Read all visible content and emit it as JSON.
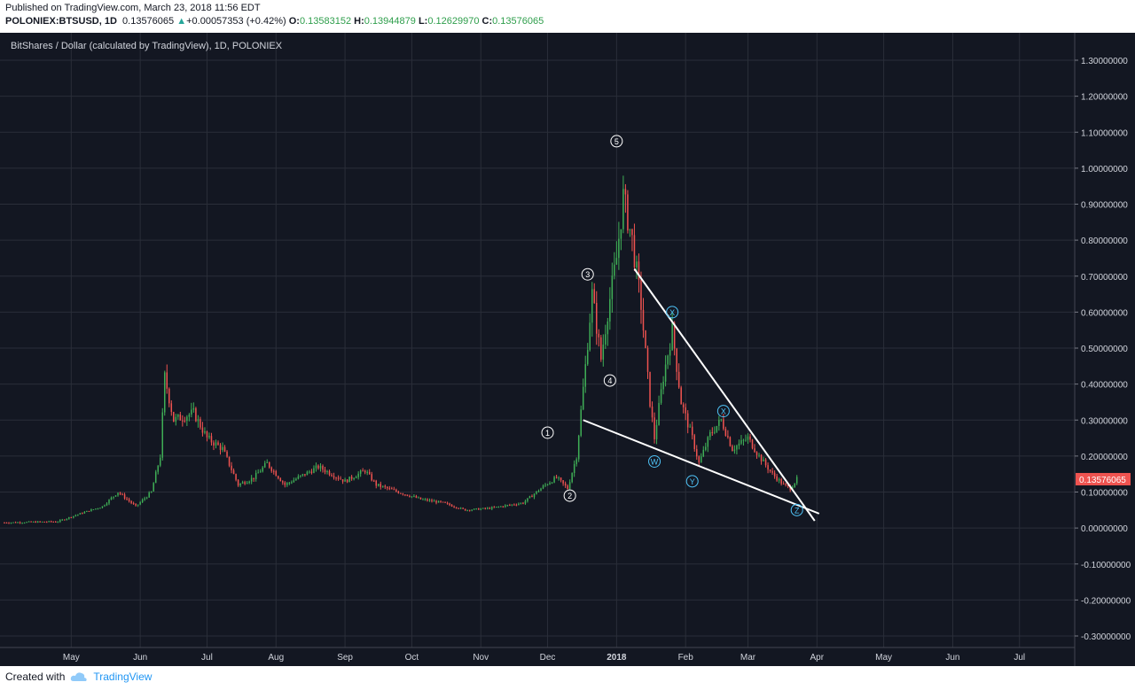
{
  "header": {
    "published": "Published on TradingView.com, March 23, 2018 11:56 EDT",
    "symbol": "POLONIEX:BTSUSD, 1D",
    "last": "0.13576065",
    "change": "+0.00057353 (+0.42%)",
    "open_label": "O:",
    "open": "0.13583152",
    "high_label": "H:",
    "high": "0.13944879",
    "low_label": "L:",
    "low": "0.12629970",
    "close_label": "C:",
    "close": "0.13576065"
  },
  "footer": {
    "created_with": "Created with",
    "brand": "TradingView"
  },
  "colors": {
    "background": "#131722",
    "grid": "#2a2e39",
    "up": "#26a69a",
    "up_fill": "#3fae56",
    "down": "#ef5350",
    "trendline": "#ffffff",
    "wave_white": "#ffffff",
    "wave_cyan": "#4fc3f7",
    "price_tag": "#ef5350"
  },
  "chart_data": {
    "type": "candlestick",
    "title": "BitShares / Dollar (calculated by TradingView), 1D, POLONIEX",
    "price_axis": {
      "min": -0.3,
      "max": 1.3,
      "ticks": [
        1.3,
        1.2,
        1.1,
        1.0,
        0.9,
        0.8,
        0.7,
        0.6,
        0.5,
        0.4,
        0.3,
        0.2,
        0.1,
        0.0,
        -0.1,
        -0.2,
        -0.3
      ],
      "tick_labels": [
        "1.30000000",
        "1.20000000",
        "1.10000000",
        "1.00000000",
        "0.90000000",
        "0.80000000",
        "0.70000000",
        "0.60000000",
        "0.50000000",
        "0.40000000",
        "0.30000000",
        "0.20000000",
        "0.10000000",
        "0.00000000",
        "-0.10000000",
        "-0.20000000",
        "-0.30000000"
      ]
    },
    "time_axis": {
      "start": "2017-04-01",
      "end": "2018-07-25",
      "ticks": [
        {
          "date": "2017-05-01",
          "label": "May"
        },
        {
          "date": "2017-06-01",
          "label": "Jun"
        },
        {
          "date": "2017-07-01",
          "label": "Jul"
        },
        {
          "date": "2017-08-01",
          "label": "Aug"
        },
        {
          "date": "2017-09-01",
          "label": "Sep"
        },
        {
          "date": "2017-10-01",
          "label": "Oct"
        },
        {
          "date": "2017-11-01",
          "label": "Nov"
        },
        {
          "date": "2017-12-01",
          "label": "Dec"
        },
        {
          "date": "2018-01-01",
          "label": "2018"
        },
        {
          "date": "2018-02-01",
          "label": "Feb"
        },
        {
          "date": "2018-03-01",
          "label": "Mar"
        },
        {
          "date": "2018-04-01",
          "label": "Apr"
        },
        {
          "date": "2018-05-01",
          "label": "May"
        },
        {
          "date": "2018-06-01",
          "label": "Jun"
        },
        {
          "date": "2018-07-01",
          "label": "Jul"
        }
      ]
    },
    "current_price": {
      "value": 0.13576065,
      "label": "0.13576065"
    },
    "price_path": [
      {
        "date": "2017-04-01",
        "close": 0.015
      },
      {
        "date": "2017-04-25",
        "close": 0.018
      },
      {
        "date": "2017-05-05",
        "close": 0.04
      },
      {
        "date": "2017-05-15",
        "close": 0.06
      },
      {
        "date": "2017-05-22",
        "close": 0.1
      },
      {
        "date": "2017-05-30",
        "close": 0.06
      },
      {
        "date": "2017-06-06",
        "close": 0.1
      },
      {
        "date": "2017-06-10",
        "close": 0.2
      },
      {
        "date": "2017-06-12",
        "close": 0.42
      },
      {
        "date": "2017-06-16",
        "close": 0.3
      },
      {
        "date": "2017-06-25",
        "close": 0.32
      },
      {
        "date": "2017-07-01",
        "close": 0.25
      },
      {
        "date": "2017-07-08",
        "close": 0.22
      },
      {
        "date": "2017-07-15",
        "close": 0.12
      },
      {
        "date": "2017-07-22",
        "close": 0.14
      },
      {
        "date": "2017-07-28",
        "close": 0.18
      },
      {
        "date": "2017-08-05",
        "close": 0.12
      },
      {
        "date": "2017-08-20",
        "close": 0.17
      },
      {
        "date": "2017-09-01",
        "close": 0.13
      },
      {
        "date": "2017-09-10",
        "close": 0.16
      },
      {
        "date": "2017-09-15",
        "close": 0.12
      },
      {
        "date": "2017-09-25",
        "close": 0.1
      },
      {
        "date": "2017-10-05",
        "close": 0.08
      },
      {
        "date": "2017-10-15",
        "close": 0.07
      },
      {
        "date": "2017-10-25",
        "close": 0.05
      },
      {
        "date": "2017-11-05",
        "close": 0.055
      },
      {
        "date": "2017-11-20",
        "close": 0.07
      },
      {
        "date": "2017-11-30",
        "close": 0.12
      },
      {
        "date": "2017-12-05",
        "close": 0.14
      },
      {
        "date": "2017-12-10",
        "close": 0.11
      },
      {
        "date": "2017-12-14",
        "close": 0.2
      },
      {
        "date": "2017-12-18",
        "close": 0.45
      },
      {
        "date": "2017-12-21",
        "close": 0.65
      },
      {
        "date": "2017-12-25",
        "close": 0.47
      },
      {
        "date": "2017-12-28",
        "close": 0.6
      },
      {
        "date": "2018-01-01",
        "close": 0.75
      },
      {
        "date": "2018-01-04",
        "close": 0.92
      },
      {
        "date": "2018-01-08",
        "close": 0.8
      },
      {
        "date": "2018-01-12",
        "close": 0.62
      },
      {
        "date": "2018-01-16",
        "close": 0.35
      },
      {
        "date": "2018-01-18",
        "close": 0.25
      },
      {
        "date": "2018-01-22",
        "close": 0.42
      },
      {
        "date": "2018-01-26",
        "close": 0.55
      },
      {
        "date": "2018-01-30",
        "close": 0.35
      },
      {
        "date": "2018-02-04",
        "close": 0.25
      },
      {
        "date": "2018-02-07",
        "close": 0.18
      },
      {
        "date": "2018-02-12",
        "close": 0.26
      },
      {
        "date": "2018-02-17",
        "close": 0.3
      },
      {
        "date": "2018-02-22",
        "close": 0.22
      },
      {
        "date": "2018-03-01",
        "close": 0.25
      },
      {
        "date": "2018-03-06",
        "close": 0.2
      },
      {
        "date": "2018-03-12",
        "close": 0.15
      },
      {
        "date": "2018-03-17",
        "close": 0.12
      },
      {
        "date": "2018-03-20",
        "close": 0.11
      },
      {
        "date": "2018-03-23",
        "close": 0.136
      }
    ],
    "trendlines": [
      {
        "name": "upper",
        "from": {
          "date": "2018-01-09",
          "price": 0.72
        },
        "to": {
          "date": "2018-03-31",
          "price": 0.02
        }
      },
      {
        "name": "lower",
        "from": {
          "date": "2017-12-17",
          "price": 0.3
        },
        "to": {
          "date": "2018-04-02",
          "price": 0.04
        }
      }
    ],
    "wave_labels": [
      {
        "text": "1",
        "date": "2017-12-01",
        "price": 0.265,
        "color": "white"
      },
      {
        "text": "2",
        "date": "2017-12-11",
        "price": 0.09,
        "color": "white"
      },
      {
        "text": "3",
        "date": "2017-12-19",
        "price": 0.705,
        "color": "white"
      },
      {
        "text": "4",
        "date": "2017-12-29",
        "price": 0.41,
        "color": "white"
      },
      {
        "text": "5",
        "date": "2018-01-01",
        "price": 1.075,
        "color": "white"
      },
      {
        "text": "W",
        "date": "2018-01-18",
        "price": 0.185,
        "color": "cyan"
      },
      {
        "text": "X",
        "date": "2018-01-26",
        "price": 0.6,
        "color": "cyan"
      },
      {
        "text": "Y",
        "date": "2018-02-04",
        "price": 0.13,
        "color": "cyan"
      },
      {
        "text": "X",
        "date": "2018-02-18",
        "price": 0.325,
        "color": "cyan"
      },
      {
        "text": "Z",
        "date": "2018-03-23",
        "price": 0.05,
        "color": "cyan"
      }
    ]
  }
}
